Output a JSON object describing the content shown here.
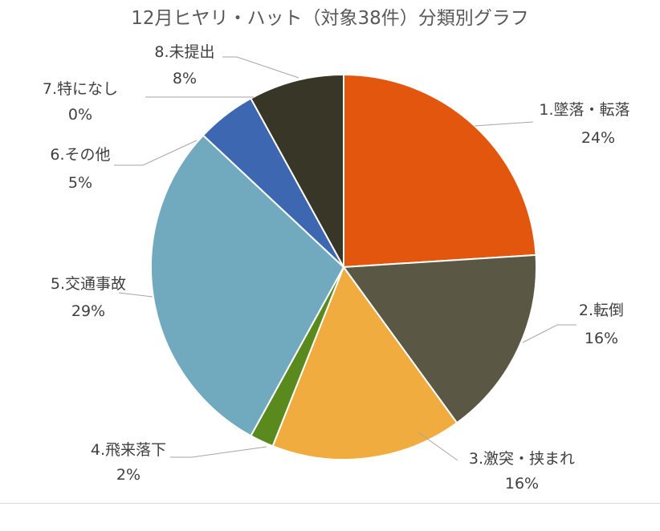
{
  "chart_data": {
    "type": "pie",
    "title": "12月ヒヤリ・ハット（対象38件）分類別グラフ",
    "categories": [
      "1.墜落・転落",
      "2.転倒",
      "3.激突・挟まれ",
      "4.飛来落下",
      "5.交通事故",
      "6.その他",
      "7.特になし",
      "8.未提出"
    ],
    "values": [
      24,
      16,
      16,
      2,
      29,
      5,
      0,
      8
    ],
    "value_labels": [
      "24%",
      "16%",
      "16%",
      "2%",
      "29%",
      "5%",
      "0%",
      "8%"
    ],
    "colors": [
      "#E2560E",
      "#5A5744",
      "#F0AC3E",
      "#5A8A1E",
      "#71A9BE",
      "#3D67B1",
      "#3D67B1",
      "#383627"
    ],
    "legend": "none",
    "data_labels": "outside-with-leader-lines"
  }
}
